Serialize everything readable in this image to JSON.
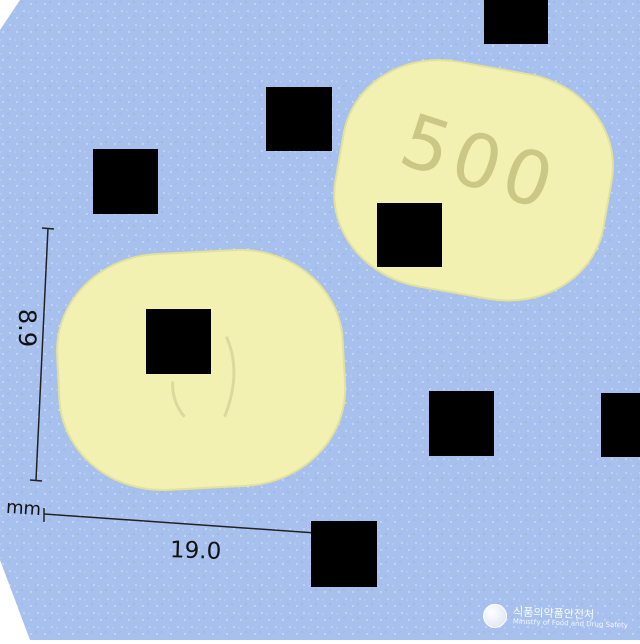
{
  "image": {
    "subject": "two tablets",
    "background_color": "#a7c0ee",
    "tablet_color": "#f2f1b2"
  },
  "tablet_back": {
    "imprint": "500"
  },
  "dimensions": {
    "height_label": "8.9",
    "width_label": "19.0",
    "unit_label": "mm"
  },
  "watermark": {
    "korean_text": "식품의약품안전처",
    "english_text": "Ministry of Food and Drug Safety"
  }
}
